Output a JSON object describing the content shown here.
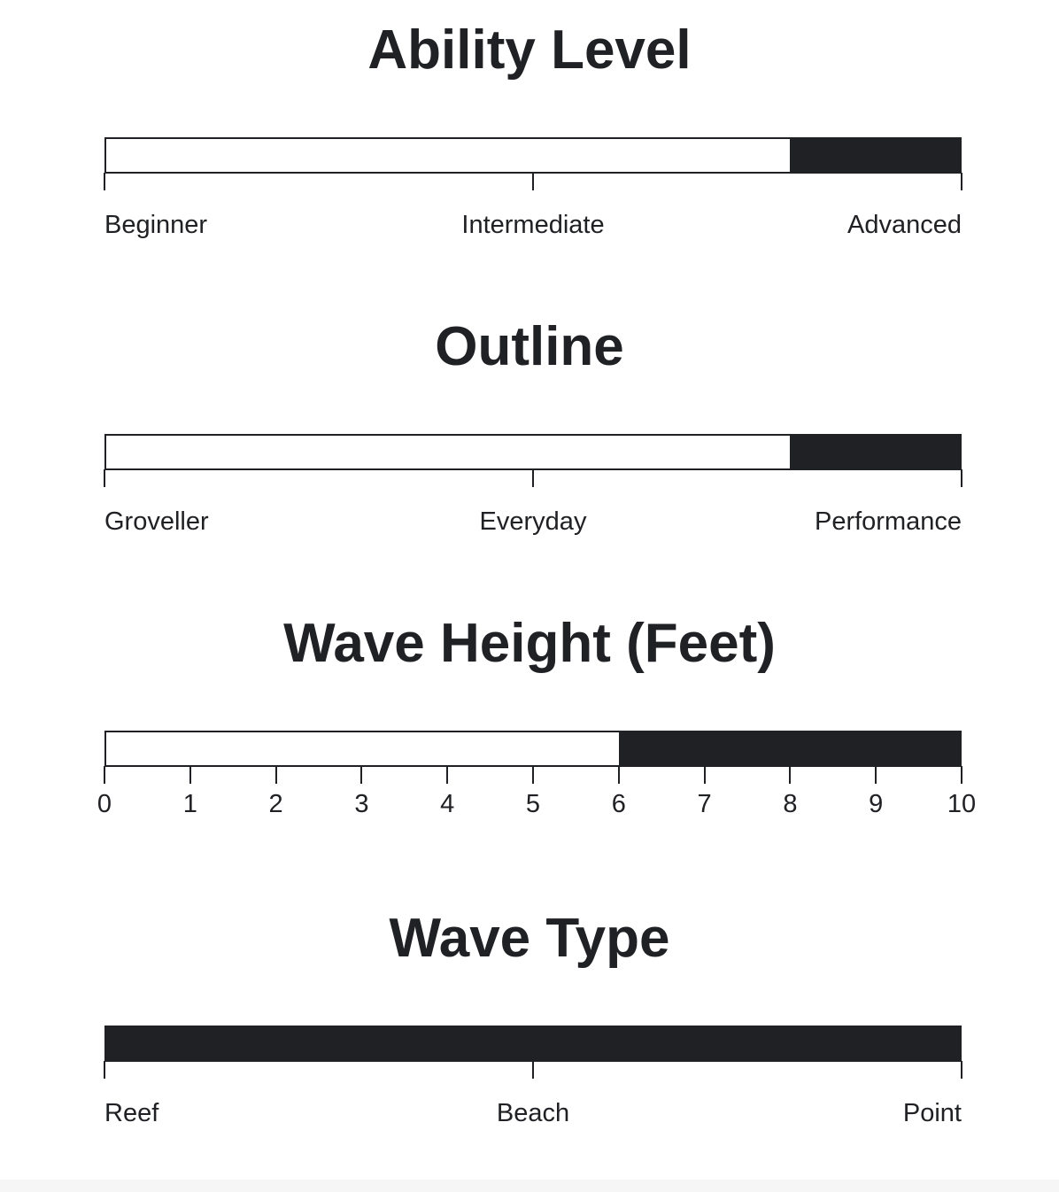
{
  "colors": {
    "ink": "#202124",
    "background": "#ffffff"
  },
  "chart_data": [
    {
      "type": "bar",
      "title": "Ability Level",
      "scale": "categorical",
      "labels": [
        "Beginner",
        "Intermediate",
        "Advanced"
      ],
      "range": [
        0,
        1
      ],
      "filled_range": [
        0.8,
        1.0
      ]
    },
    {
      "type": "bar",
      "title": "Outline",
      "scale": "categorical",
      "labels": [
        "Groveller",
        "Everyday",
        "Performance"
      ],
      "range": [
        0,
        1
      ],
      "filled_range": [
        0.8,
        1.0
      ]
    },
    {
      "type": "bar",
      "title": "Wave Height (Feet)",
      "scale": "numeric",
      "labels": [
        "0",
        "1",
        "2",
        "3",
        "4",
        "5",
        "6",
        "7",
        "8",
        "9",
        "10"
      ],
      "range": [
        0,
        10
      ],
      "filled_range": [
        6,
        10
      ]
    },
    {
      "type": "bar",
      "title": "Wave Type",
      "scale": "categorical",
      "labels": [
        "Reef",
        "Beach",
        "Point"
      ],
      "range": [
        0,
        1
      ],
      "filled_range": [
        0,
        1
      ]
    }
  ]
}
